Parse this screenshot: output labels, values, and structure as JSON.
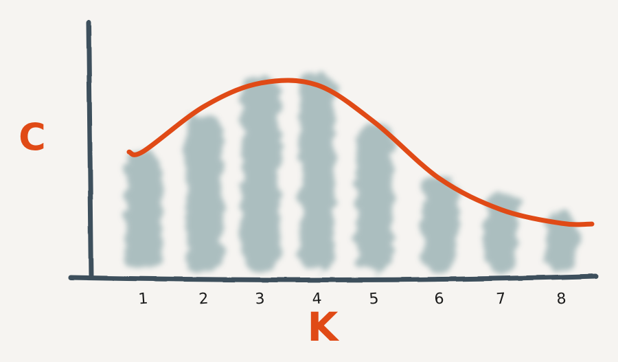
{
  "chart_data": {
    "type": "bar",
    "style": "hand-drawn sketch",
    "categories": [
      "1",
      "2",
      "3",
      "4",
      "5",
      "6",
      "7",
      "8"
    ],
    "values": [
      62,
      82,
      100,
      103,
      76,
      50,
      41,
      31
    ],
    "curve": [
      62,
      85,
      97,
      96,
      77,
      48,
      32,
      25
    ],
    "ylim": [
      0,
      115
    ],
    "xlabel": "K",
    "ylabel": "C",
    "grid": false,
    "legend": "none",
    "colors": {
      "background": "#f6f4f1",
      "axis": "#3d4f5c",
      "bars": "#9fb5b7",
      "curve": "#e04a16",
      "axis_labels": "#e04a16",
      "tick_labels": "#1a1a1a"
    }
  }
}
